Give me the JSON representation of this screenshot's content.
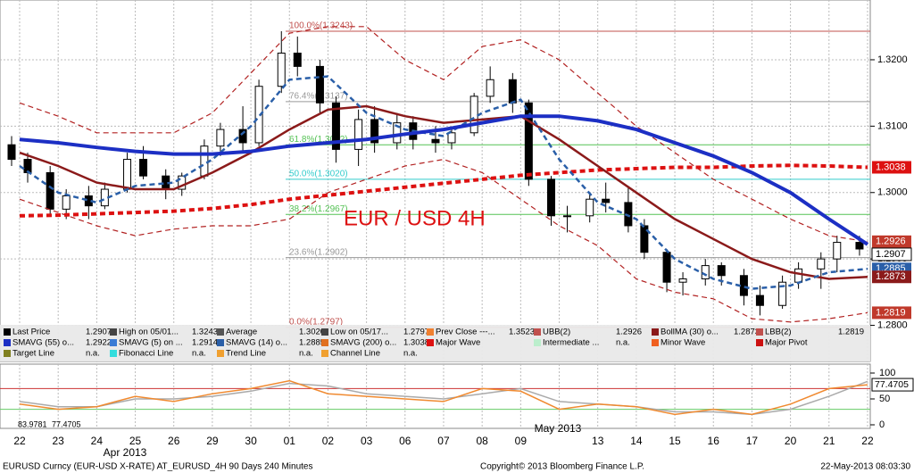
{
  "chart_data": {
    "type": "candlestick",
    "annotation": "EUR / USD 4H",
    "categories": [
      "22",
      "23",
      "24",
      "25",
      "26",
      "29",
      "30",
      "01",
      "02",
      "03",
      "06",
      "07",
      "08",
      "09",
      null,
      "13",
      "14",
      "15",
      "16",
      "17",
      "20",
      "21",
      "22"
    ],
    "month_labels": [
      "Apr 2013",
      "May 2013"
    ],
    "ylim": [
      1.279,
      1.329
    ],
    "yticks": [
      {
        "value": 1.32,
        "label": "1.3200"
      },
      {
        "value": 1.31,
        "label": "1.3100"
      },
      {
        "value": 1.3,
        "label": "1.3000"
      },
      {
        "value": 1.29,
        "label": "1.2900"
      },
      {
        "value": 1.28,
        "label": "1.2800"
      }
    ],
    "grid": true,
    "candles": [
      [
        1.3072,
        1.3085,
        1.304,
        1.305
      ],
      [
        1.305,
        1.306,
        1.3015,
        1.303
      ],
      [
        1.303,
        1.304,
        1.2965,
        1.2975
      ],
      [
        1.2975,
        1.3005,
        1.296,
        1.2995
      ],
      [
        1.2995,
        1.301,
        1.296,
        1.298
      ],
      [
        1.298,
        1.3015,
        1.2975,
        1.3005
      ],
      [
        1.3005,
        1.306,
        1.3,
        1.305
      ],
      [
        1.305,
        1.307,
        1.302,
        1.3025
      ],
      [
        1.3025,
        1.3035,
        1.299,
        1.3005
      ],
      [
        1.3005,
        1.303,
        1.2995,
        1.3025
      ],
      [
        1.3025,
        1.308,
        1.302,
        1.307
      ],
      [
        1.307,
        1.3105,
        1.3055,
        1.3095
      ],
      [
        1.3095,
        1.313,
        1.306,
        1.3075
      ],
      [
        1.3075,
        1.317,
        1.307,
        1.316
      ],
      [
        1.316,
        1.3243,
        1.315,
        1.321
      ],
      [
        1.321,
        1.3235,
        1.3175,
        1.319
      ],
      [
        1.319,
        1.32,
        1.312,
        1.3135
      ],
      [
        1.3135,
        1.3145,
        1.3045,
        1.3065
      ],
      [
        1.3065,
        1.3125,
        1.304,
        1.311
      ],
      [
        1.311,
        1.313,
        1.306,
        1.3075
      ],
      [
        1.3075,
        1.312,
        1.3065,
        1.3105
      ],
      [
        1.3105,
        1.3115,
        1.3065,
        1.308
      ],
      [
        1.308,
        1.31,
        1.306,
        1.3075
      ],
      [
        1.3075,
        1.3095,
        1.3065,
        1.309
      ],
      [
        1.309,
        1.315,
        1.3085,
        1.3145
      ],
      [
        1.3145,
        1.319,
        1.3135,
        1.317
      ],
      [
        1.317,
        1.318,
        1.312,
        1.3135
      ],
      [
        1.3135,
        1.314,
        1.301,
        1.302
      ],
      [
        1.302,
        1.3025,
        1.295,
        1.2965
      ],
      [
        1.2965,
        1.298,
        1.294,
        1.2965
      ],
      [
        1.2965,
        1.3,
        1.2955,
        1.299
      ],
      [
        1.299,
        1.3015,
        1.297,
        1.2985
      ],
      [
        1.2985,
        1.301,
        1.294,
        1.295
      ],
      [
        1.295,
        1.296,
        1.29,
        1.291
      ],
      [
        1.291,
        1.2915,
        1.285,
        1.2865
      ],
      [
        1.2865,
        1.288,
        1.2845,
        1.287
      ],
      [
        1.287,
        1.29,
        1.286,
        1.289
      ],
      [
        1.289,
        1.2895,
        1.286,
        1.2875
      ],
      [
        1.2875,
        1.2885,
        1.283,
        1.2845
      ],
      [
        1.2845,
        1.286,
        1.2815,
        1.283
      ],
      [
        1.283,
        1.2875,
        1.2825,
        1.2865
      ],
      [
        1.2865,
        1.2895,
        1.2855,
        1.2885
      ],
      [
        1.2885,
        1.291,
        1.2855,
        1.29
      ],
      [
        1.29,
        1.2935,
        1.288,
        1.2925
      ],
      [
        1.2925,
        1.2935,
        1.2905,
        1.2915
      ],
      [
        1.2915,
        1.2926,
        1.29,
        1.2907
      ]
    ],
    "series": [
      {
        "color": "#b22222",
        "dash": true,
        "width": 1.2,
        "values": [
          1.3135,
          1.3115,
          1.309,
          1.309,
          1.309,
          1.312,
          1.318,
          1.324,
          1.325,
          1.325,
          1.32,
          1.317,
          1.322,
          1.323,
          1.32,
          1.315,
          1.31,
          1.306,
          1.302,
          1.299,
          1.296,
          1.2935,
          1.2926
        ]
      },
      {
        "color": "#b22222",
        "dash": true,
        "width": 1.2,
        "values": [
          1.299,
          1.297,
          1.295,
          1.2935,
          1.2945,
          1.295,
          1.295,
          1.296,
          1.3,
          1.302,
          1.304,
          1.305,
          1.303,
          1.299,
          1.295,
          1.292,
          1.287,
          1.285,
          1.284,
          1.281,
          1.2805,
          1.281,
          1.2819
        ]
      },
      {
        "color": "#dd1111",
        "dash": true,
        "width": 4,
        "values": [
          1.2965,
          1.2966,
          1.2968,
          1.297,
          1.2972,
          1.2976,
          1.2982,
          1.299,
          1.2996,
          1.3002,
          1.3008,
          1.3014,
          1.302,
          1.3026,
          1.303,
          1.3034,
          1.3036,
          1.3038,
          1.3038,
          1.304,
          1.3041,
          1.304,
          1.3038
        ]
      },
      {
        "color": "#8b1a1a",
        "dash": false,
        "width": 2.5,
        "values": [
          1.306,
          1.304,
          1.3015,
          1.3005,
          1.3005,
          1.303,
          1.306,
          1.3095,
          1.3125,
          1.313,
          1.3115,
          1.3105,
          1.311,
          1.3115,
          1.308,
          1.304,
          1.3,
          1.296,
          1.293,
          1.29,
          1.288,
          1.287,
          1.2873
        ]
      },
      {
        "color": "#2a5fa8",
        "dash": true,
        "width": 2.5,
        "values": [
          1.304,
          1.3,
          1.2985,
          1.301,
          1.3015,
          1.305,
          1.31,
          1.317,
          1.3175,
          1.312,
          1.3095,
          1.3085,
          1.312,
          1.314,
          1.305,
          1.2985,
          1.296,
          1.29,
          1.287,
          1.2855,
          1.286,
          1.288,
          1.2885
        ]
      },
      {
        "color": "#1c2fc4",
        "dash": false,
        "width": 4,
        "values": [
          1.308,
          1.3075,
          1.3068,
          1.3062,
          1.3058,
          1.3058,
          1.3062,
          1.307,
          1.3075,
          1.308,
          1.3088,
          1.3095,
          1.3105,
          1.3115,
          1.3115,
          1.3108,
          1.3095,
          1.3075,
          1.3055,
          1.303,
          1.3,
          1.296,
          1.2922
        ]
      }
    ],
    "fib_levels": [
      {
        "value": 1.3243,
        "label": "100.0%(1.3243)",
        "color": "#c0504d"
      },
      {
        "value": 1.3137,
        "label": "76.4%(1.3137)",
        "color": "#999999"
      },
      {
        "value": 1.3072,
        "label": "61.8%(1.3072)",
        "color": "#55c255"
      },
      {
        "value": 1.302,
        "label": "50.0%(1.3020)",
        "color": "#33cccc"
      },
      {
        "value": 1.2967,
        "label": "38.2%(1.2967)",
        "color": "#55c255"
      },
      {
        "value": 1.2902,
        "label": "23.6%(1.2902)",
        "color": "#999999"
      },
      {
        "value": 1.2797,
        "label": "0.0%(1.2797)",
        "color": "#c0504d"
      }
    ],
    "price_labels": [
      {
        "value": 1.3038,
        "label": "1.3038",
        "color": "#dd1111"
      },
      {
        "value": 1.2926,
        "label": "1.2926",
        "color": "#c0392b"
      },
      {
        "value": 1.2907,
        "label": "1.2907",
        "color": "#ffffff"
      },
      {
        "value": 1.2885,
        "label": "1.2885",
        "color": "#2a5fa8"
      },
      {
        "value": 1.2873,
        "label": "1.2873",
        "color": "#8b1a1a"
      },
      {
        "value": 1.2819,
        "label": "1.2819",
        "color": "#c0392b"
      }
    ],
    "legend": [
      [
        {
          "label": "Last Price",
          "value": "1.2907",
          "color": "#000000"
        },
        {
          "label": "High on 05/01...",
          "value": "1.3243",
          "color": "#444444"
        },
        {
          "label": "Average",
          "value": "1.3020",
          "color": "#555555"
        },
        {
          "label": "Low on 05/17...",
          "value": "1.2797",
          "color": "#444444"
        },
        {
          "label": "Prev Close ---...",
          "value": "1.3523",
          "color": "#f08030"
        },
        {
          "label": "UBB(2)",
          "value": "1.2926",
          "color": "#c0504d"
        },
        {
          "label": "BollMA (30) o...",
          "value": "1.2873",
          "color": "#8b1a1a"
        },
        {
          "label": "LBB(2)",
          "value": "1.2819",
          "color": "#c0504d"
        }
      ],
      [
        {
          "label": "SMAVG (55) o...",
          "value": "1.2922",
          "color": "#1c2fc4"
        },
        {
          "label": "SMAVG (5) on ...",
          "value": "1.2914",
          "color": "#3a7bd5"
        },
        {
          "label": "SMAVG (14) o...",
          "value": "1.2885",
          "color": "#2a5fa8"
        },
        {
          "label": "SMAVG (200) o...",
          "value": "1.3038",
          "color": "#e07020"
        },
        {
          "label": "Major Wave",
          "color": "#dd1111"
        },
        {
          "label": "Intermediate ...",
          "value": "n.a.",
          "color": "#bbeecc"
        },
        {
          "label": "Minor Wave",
          "color": "#f06020"
        },
        {
          "label": "Major Pivot",
          "color": "#cc1111"
        }
      ],
      [
        {
          "label": "Target Line",
          "value": "n.a.",
          "color": "#808020"
        },
        {
          "label": "Fibonacci Line",
          "value": "n.a.",
          "color": "#33dddd"
        },
        {
          "label": "Trend Line",
          "value": "n.a.",
          "color": "#f0a030"
        },
        {
          "label": "Channel Line",
          "value": "n.a.",
          "color": "#f0a030"
        }
      ]
    ],
    "indicator": {
      "ylim": [
        0,
        100
      ],
      "yticks": [
        0,
        50,
        100
      ],
      "levels": [
        {
          "value": 70,
          "color": "#cc3333"
        },
        {
          "value": 30,
          "color": "#66cc66"
        }
      ],
      "series": [
        {
          "color": "#aaaaaa",
          "values": [
            45,
            35,
            35,
            50,
            50,
            55,
            65,
            80,
            75,
            60,
            55,
            50,
            60,
            70,
            45,
            40,
            35,
            25,
            25,
            20,
            30,
            55,
            83.9781
          ]
        },
        {
          "color": "#f08a30",
          "values": [
            40,
            30,
            35,
            55,
            45,
            60,
            70,
            85,
            60,
            55,
            50,
            45,
            70,
            65,
            30,
            40,
            35,
            20,
            30,
            20,
            40,
            70,
            77.4705
          ]
        }
      ]
    },
    "footer": {
      "left": "EURUSD Curncy (EUR-USD X-RATE) AT_EURUSD_4H 90 Days 240 Minutes",
      "center": "Copyright© 2013 Bloomberg Finance L.P.",
      "right": "22-May-2013 08:03:30"
    }
  }
}
